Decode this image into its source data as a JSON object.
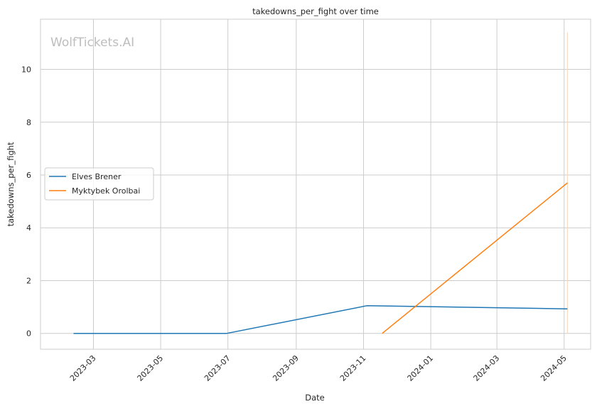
{
  "chart_data": {
    "type": "line",
    "title": "takedowns_per_fight over time",
    "xlabel": "Date",
    "ylabel": "takedowns_per_fight",
    "watermark": "WolfTickets.AI",
    "x_ticks": [
      "2023-03",
      "2023-05",
      "2023-07",
      "2023-09",
      "2023-11",
      "2024-01",
      "2024-03",
      "2024-05"
    ],
    "y_ticks": [
      "0",
      "2",
      "4",
      "6",
      "8",
      "10"
    ],
    "xlim": [
      "2023-01-12",
      "2024-05-25"
    ],
    "ylim": [
      -0.6,
      11.9
    ],
    "grid": true,
    "legend_position": "center-left",
    "series": [
      {
        "name": "Elves Brener",
        "color": "#1f77b4",
        "points": [
          {
            "x": "2023-02-11",
            "y": 0
          },
          {
            "x": "2023-06-30",
            "y": 0
          },
          {
            "x": "2023-11-04",
            "y": 1.05
          },
          {
            "x": "2024-05-04",
            "y": 0.93
          }
        ]
      },
      {
        "name": "Myktybek Orolbai",
        "color": "#ff7f0e",
        "points": [
          {
            "x": "2023-11-18",
            "y": 0
          },
          {
            "x": "2024-05-04",
            "y": 5.7
          }
        ]
      }
    ],
    "marker_line": {
      "x": "2024-05-04",
      "y_from": 0,
      "y_to": 11.4,
      "color": "#f5d7bd"
    }
  }
}
